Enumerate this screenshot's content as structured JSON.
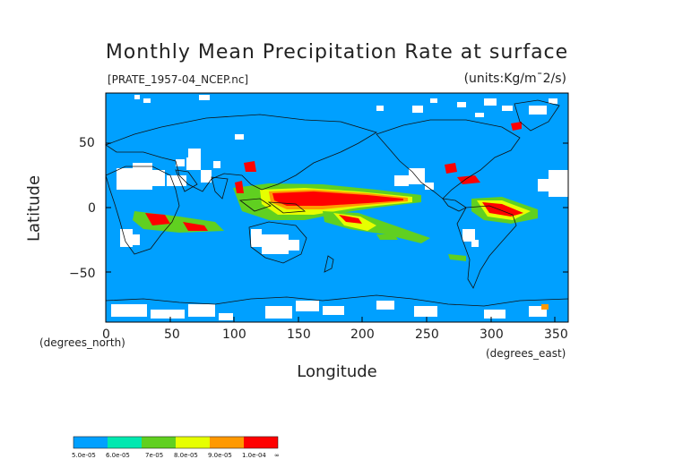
{
  "title": "Monthly Mean Precipitation Rate at surface",
  "file_label": "[PRATE_1957-04_NCEP.nc]",
  "units_label": "(units:Kg/m¯2/s)",
  "x_axis": {
    "label": "Longitude",
    "unit_label": "(degrees_east)",
    "ticks": [
      "0",
      "50",
      "100",
      "150",
      "200",
      "250",
      "300",
      "350"
    ],
    "range": [
      0,
      360
    ]
  },
  "y_axis": {
    "label": "Latitude",
    "unit_label": "(degrees_north)",
    "ticks": [
      "50",
      "0",
      "−50"
    ],
    "range": [
      -90,
      90
    ]
  },
  "colors": {
    "ocean": "#00a0ff",
    "missing": "#ffffff",
    "coast": "#111111",
    "band1": "#00a0ff",
    "band2": "#00e8b0",
    "band3": "#60d020",
    "band4": "#e6ff00",
    "band5": "#ff9900",
    "band6": "#ff0000"
  },
  "legend": {
    "labels": [
      "5.0e-05",
      "6.0e-05",
      "7e-05",
      "8.0e-05",
      "9.0e-05",
      "1.0e-04",
      "∞"
    ]
  }
}
